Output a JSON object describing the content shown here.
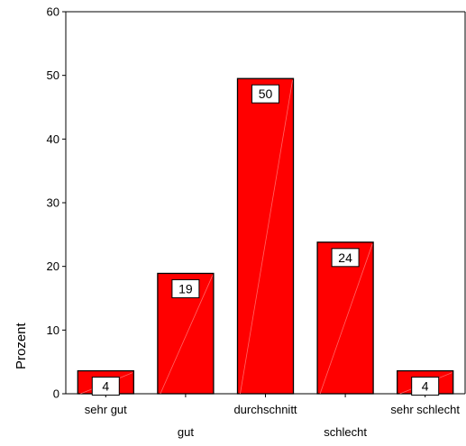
{
  "chart_data": {
    "type": "bar",
    "title": "",
    "xlabel": "",
    "ylabel": "Prozent",
    "ylim": [
      0,
      60
    ],
    "yticks": [
      0,
      10,
      20,
      30,
      40,
      50,
      60
    ],
    "categories": [
      "sehr gut",
      "gut",
      "durchschnitt",
      "schlecht",
      "sehr schlecht"
    ],
    "values": [
      3.6,
      18.9,
      49.5,
      23.8,
      3.6
    ],
    "data_labels": [
      "4",
      "19",
      "50",
      "24",
      "4"
    ],
    "grid": false,
    "legend": "none",
    "colors": {
      "bar": "#ff0000",
      "bar_border": "#000000",
      "label_box": "#ffffff"
    }
  }
}
